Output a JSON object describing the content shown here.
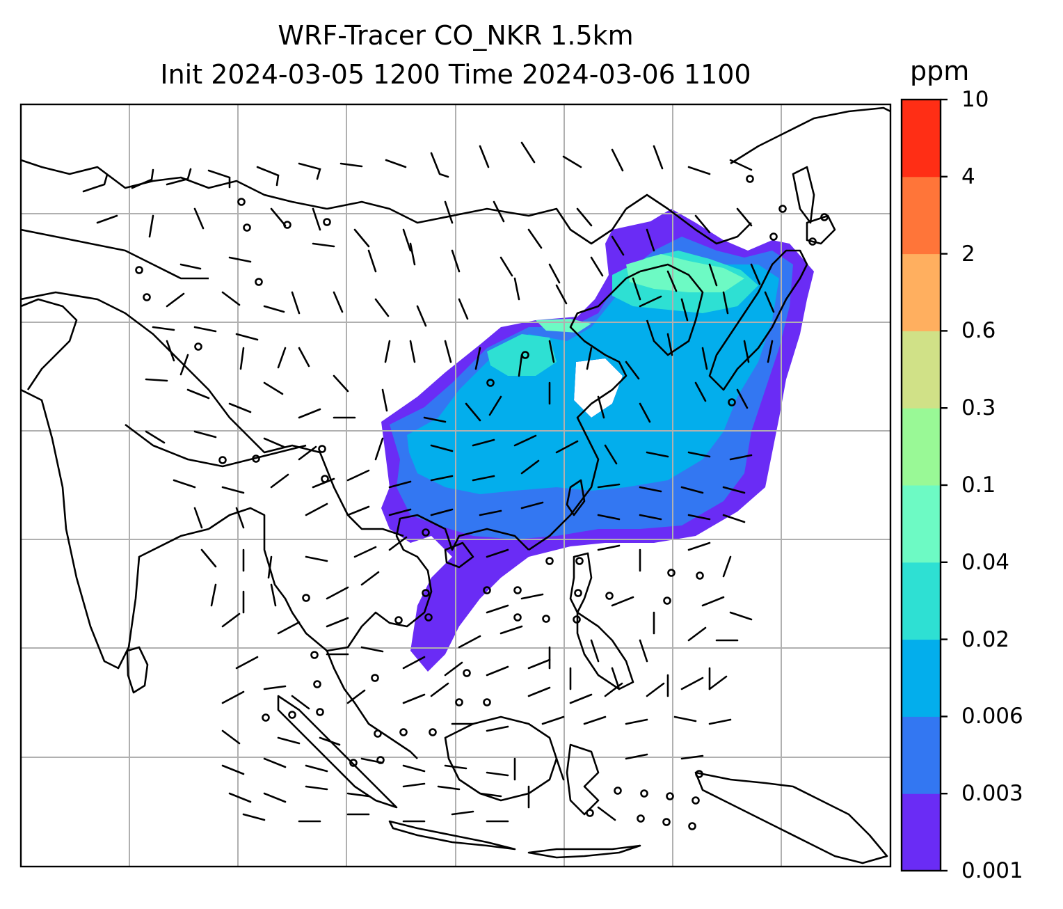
{
  "title_line1": "WRF-Tracer CO_NKR 1.5km",
  "title_line2": "Init 2024-03-05 1200 Time 2024-03-06 1100",
  "colorbar": {
    "unit": "ppm",
    "levels": [
      "0.001",
      "0.003",
      "0.006",
      "0.02",
      "0.04",
      "0.1",
      "0.3",
      "0.6",
      "2",
      "4",
      "10"
    ],
    "colors": [
      "#6a2cf5",
      "#3377f2",
      "#03aeec",
      "#2ee0d3",
      "#6dfac4",
      "#99f996",
      "#d0e187",
      "#ffaf5f",
      "#ff7539",
      "#ff2e15"
    ]
  },
  "map": {
    "gridlines": true,
    "features": [
      "coastlines",
      "country-borders",
      "wind-barbs",
      "co-tracer-plume"
    ]
  }
}
